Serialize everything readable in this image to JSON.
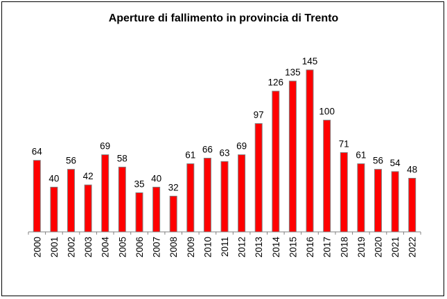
{
  "chart_data": {
    "type": "bar",
    "title": "Aperture di fallimento in provincia di Trento",
    "categories": [
      "2000",
      "2001",
      "2002",
      "2003",
      "2004",
      "2005",
      "2006",
      "2007",
      "2008",
      "2009",
      "2010",
      "2011",
      "2012",
      "2013",
      "2014",
      "2015",
      "2016",
      "2017",
      "2018",
      "2019",
      "2020",
      "2021",
      "2022"
    ],
    "values": [
      64,
      40,
      56,
      42,
      69,
      58,
      35,
      40,
      32,
      61,
      66,
      63,
      69,
      97,
      126,
      135,
      145,
      100,
      71,
      61,
      56,
      54,
      48
    ],
    "xlabel": "",
    "ylabel": "",
    "ylim": [
      0,
      145
    ],
    "grid": false,
    "legend": "none",
    "bar_color": "#ff0000",
    "bar_edge_color": "#808080",
    "data_labels": true
  }
}
